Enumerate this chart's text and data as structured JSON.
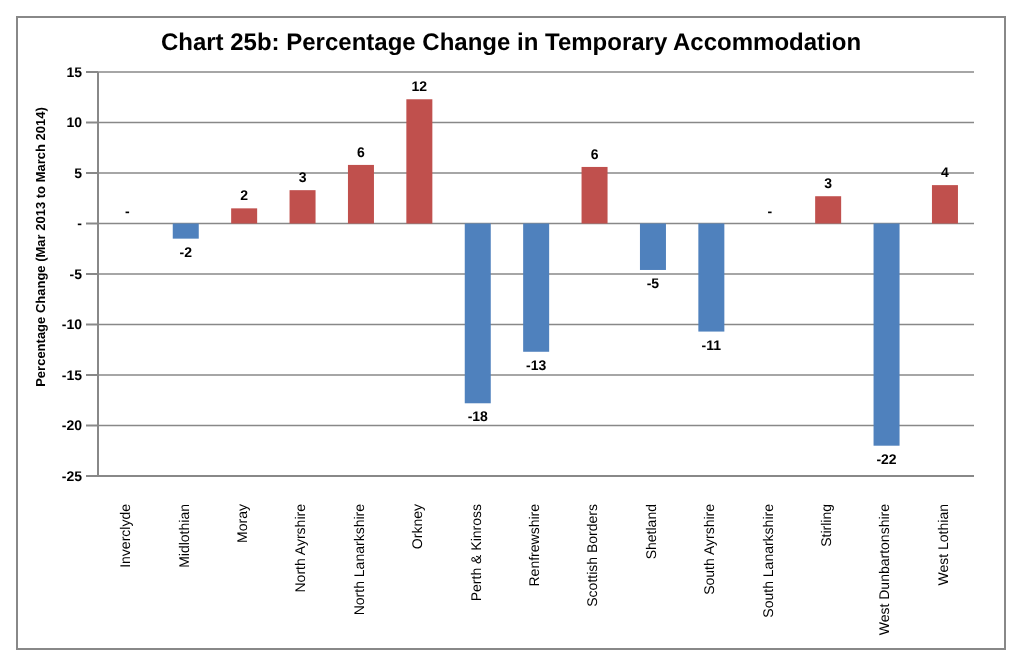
{
  "chart_data": {
    "type": "bar",
    "title": "Chart 25b: Percentage Change in Temporary Accommodation",
    "ylabel": "Percentage Change (Mar 2013 to March 2014)",
    "categories": [
      "Inverclyde",
      "Midlothian",
      "Moray",
      "North Ayrshire",
      "North Lanarkshire",
      "Orkney",
      "Perth & Kinross",
      "Renfrewshire",
      "Scottish Borders",
      "Shetland",
      "South Ayrshire",
      "South Lanarkshire",
      "Stirling",
      "West Dunbartonshire",
      "West Lothian"
    ],
    "values": [
      0,
      -1.5,
      1.5,
      3.3,
      5.8,
      12.3,
      -17.8,
      -12.7,
      5.6,
      -4.6,
      -10.7,
      0,
      2.7,
      -22,
      3.8
    ],
    "value_labels": [
      "-",
      "-2",
      "2",
      "3",
      "6",
      "12",
      "-18",
      "-13",
      "6",
      "-5",
      "-11",
      "-",
      "3",
      "-22",
      "4"
    ],
    "colors": [
      "#c0504d",
      "#4f81bd",
      "#c0504d",
      "#c0504d",
      "#c0504d",
      "#c0504d",
      "#4f81bd",
      "#4f81bd",
      "#c0504d",
      "#4f81bd",
      "#4f81bd",
      "#c0504d",
      "#c0504d",
      "#4f81bd",
      "#c0504d"
    ],
    "ylim": [
      -25,
      15
    ],
    "yticks": [
      -25,
      -20,
      -15,
      -10,
      -5,
      {
        "value": 0,
        "label": "-"
      },
      5,
      10,
      15
    ],
    "grid": "y"
  }
}
